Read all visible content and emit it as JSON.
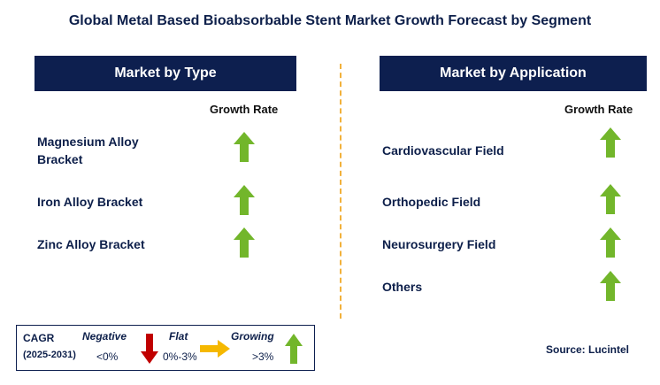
{
  "title": "Global Metal Based Bioabsorbable Stent Market Growth Forecast by Segment",
  "left_panel": {
    "header": "Market by Type",
    "column_label": "Growth Rate",
    "items": [
      {
        "label_line1": "Magnesium Alloy",
        "label_line2": "Bracket",
        "trend": "growing"
      },
      {
        "label": "Iron Alloy Bracket",
        "trend": "growing"
      },
      {
        "label": "Zinc Alloy Bracket",
        "trend": "growing"
      }
    ]
  },
  "right_panel": {
    "header": "Market by Application",
    "column_label": "Growth Rate",
    "items": [
      {
        "label": "Cardiovascular Field",
        "trend": "growing"
      },
      {
        "label": "Orthopedic Field",
        "trend": "growing"
      },
      {
        "label": "Neurosurgery Field",
        "trend": "growing"
      },
      {
        "label": "Others",
        "trend": "growing"
      }
    ]
  },
  "legend": {
    "cagr_label": "CAGR",
    "period": "(2025-2031)",
    "negative_label": "Negative",
    "negative_range": "<0%",
    "flat_label": "Flat",
    "flat_range": "0%-3%",
    "growing_label": "Growing",
    "growing_range": ">3%"
  },
  "source": "Source: Lucintel",
  "colors": {
    "navy": "#0d1f4f",
    "growing_arrow": "#72b62b",
    "negative_arrow": "#c00000",
    "flat_arrow": "#f5b800",
    "divider": "#f2b13b"
  }
}
